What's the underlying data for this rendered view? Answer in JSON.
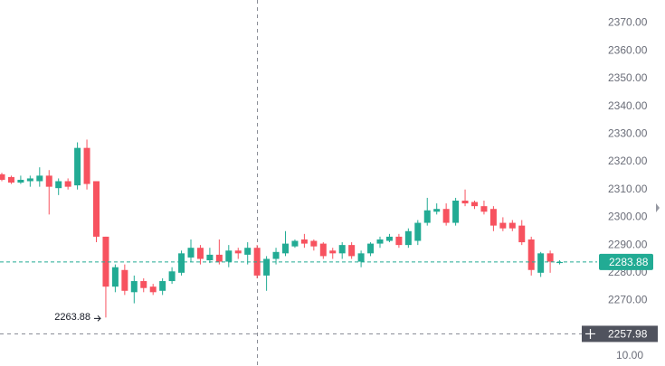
{
  "chart_data": {
    "type": "candlestick",
    "open": [
      2315.5,
      2314.5,
      2312.5,
      2313,
      2313,
      2315,
      2310.5,
      2313,
      2311.5,
      2325,
      2313,
      2293,
      2275,
      2281,
      2273,
      2277,
      2275,
      2273.5,
      2277,
      2280,
      2285.5,
      2289,
      2284.5,
      2286.5,
      2284,
      2288,
      2286.5,
      2289,
      2279,
      2285,
      2287,
      2289.5,
      2292,
      2291.5,
      2290.5,
      2288,
      2287,
      2290,
      2284,
      2287,
      2290.5,
      2291.5,
      2293,
      2290,
      2291.5,
      2298,
      2302,
      2303,
      2298,
      2306,
      2305.5,
      2304,
      2303,
      2298,
      2298,
      2297,
      2292,
      2280,
      2287,
      2283.5
    ],
    "high": [
      2316,
      2315,
      2315,
      2315,
      2318,
      2317,
      2314,
      2314,
      2327,
      2328,
      2313,
      2293,
      2283,
      2283,
      2279,
      2278,
      2276,
      2278,
      2282,
      2288,
      2292,
      2290,
      2289,
      2292,
      2290,
      2289,
      2291,
      2290,
      2286,
      2289,
      2295,
      2292,
      2294,
      2292,
      2291,
      2289,
      2291,
      2291,
      2288,
      2291,
      2293,
      2294,
      2294,
      2296,
      2299,
      2307,
      2305,
      2305,
      2307,
      2310,
      2306,
      2306,
      2304,
      2300,
      2299,
      2299,
      2293,
      2287.5,
      2288,
      2284.5
    ],
    "low": [
      2313,
      2312,
      2312,
      2311,
      2311,
      2301,
      2308,
      2310,
      2310,
      2310,
      2291,
      2263.88,
      2273,
      2272,
      2269,
      2273,
      2272,
      2272,
      2276,
      2279,
      2284,
      2283,
      2283.5,
      2283,
      2282,
      2285,
      2283,
      2278,
      2273.5,
      2283,
      2286,
      2289,
      2289,
      2288,
      2285,
      2285,
      2285,
      2285,
      2282,
      2286,
      2289,
      2291,
      2289,
      2289,
      2290,
      2297,
      2301,
      2297,
      2297,
      2304,
      2303,
      2301,
      2295,
      2295,
      2295,
      2290,
      2279,
      2278.5,
      2280,
      2283
    ],
    "close": [
      2313.5,
      2312.5,
      2313.5,
      2314,
      2315,
      2311,
      2313,
      2311,
      2325,
      2312,
      2293,
      2275,
      2282,
      2273.5,
      2277,
      2274.5,
      2273,
      2277,
      2280.5,
      2287,
      2289,
      2285,
      2286.5,
      2284,
      2288,
      2287,
      2289,
      2279,
      2285,
      2287.5,
      2290.5,
      2291.5,
      2290.5,
      2289.5,
      2286,
      2287,
      2290,
      2286,
      2287,
      2290.5,
      2292,
      2293,
      2290,
      2295,
      2298,
      2302.5,
      2303,
      2298,
      2306,
      2305,
      2304,
      2302,
      2297,
      2296,
      2296,
      2291,
      2281,
      2287,
      2284,
      2283.88
    ],
    "up_color": "#22ab94",
    "down_color": "#f7525f",
    "ylim": [
      2246.4,
      2378.3
    ],
    "yticks": [
      {
        "value": 2370,
        "label": "2370.00"
      },
      {
        "value": 2360,
        "label": "2360.00"
      },
      {
        "value": 2350,
        "label": "2350.00"
      },
      {
        "value": 2340,
        "label": "2340.00"
      },
      {
        "value": 2330,
        "label": "2330.00"
      },
      {
        "value": 2320,
        "label": "2320.00"
      },
      {
        "value": 2310,
        "label": "2310.00"
      },
      {
        "value": 2300,
        "label": "2300.00"
      },
      {
        "value": 2290,
        "label": "2290.00"
      },
      {
        "value": 2280,
        "label": "2280.00"
      },
      {
        "value": 2270,
        "label": "2270.00"
      }
    ],
    "grid": false,
    "last_price": 2283.88,
    "crosshair_price": 2257.98,
    "low_marker": 2263.88,
    "bottom_label": "10.00"
  }
}
